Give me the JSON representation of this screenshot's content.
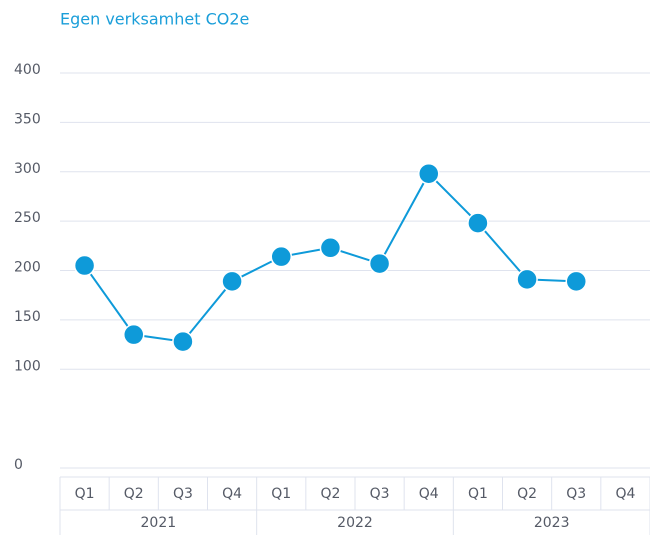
{
  "chart_data": {
    "type": "line",
    "title": "Egen verksamhet CO2e",
    "categories": [
      "Q1",
      "Q2",
      "Q3",
      "Q4",
      "Q1",
      "Q2",
      "Q3",
      "Q4",
      "Q1",
      "Q2",
      "Q3",
      "Q4"
    ],
    "groups": [
      "2021",
      "2022",
      "2023"
    ],
    "series": [
      {
        "name": "Egen verksamhet CO2e",
        "color": "#0e9ad9",
        "values": [
          204,
          134,
          127,
          188,
          213,
          222,
          206,
          297,
          247,
          190,
          188,
          null
        ]
      }
    ],
    "ylim": [
      0,
      400
    ],
    "yticks": [
      0,
      100,
      150,
      200,
      250,
      300,
      350,
      400
    ],
    "grid": true
  }
}
